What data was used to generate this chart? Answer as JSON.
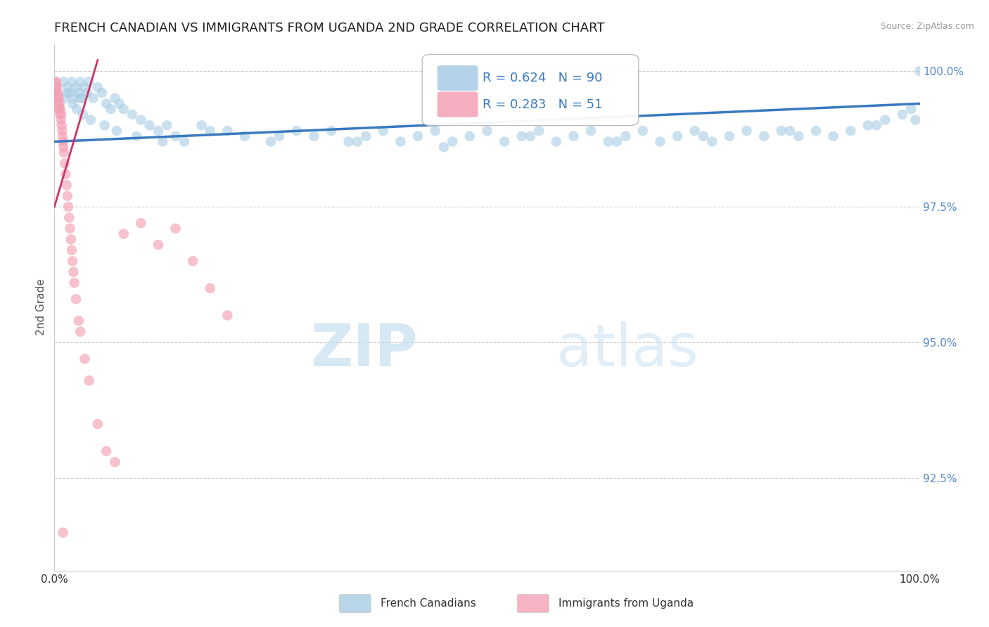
{
  "title": "FRENCH CANADIAN VS IMMIGRANTS FROM UGANDA 2ND GRADE CORRELATION CHART",
  "source_text": "Source: ZipAtlas.com",
  "ylabel": "2nd Grade",
  "y_tick_values": [
    92.5,
    95.0,
    97.5,
    100.0
  ],
  "x_min": 0.0,
  "x_max": 100.0,
  "y_min": 90.8,
  "y_max": 100.5,
  "legend_blue_label": "French Canadians",
  "legend_pink_label": "Immigrants from Uganda",
  "legend_R_blue": "R = 0.624",
  "legend_N_blue": "N = 90",
  "legend_R_pink": "R = 0.283",
  "legend_N_pink": "N = 51",
  "watermark_zip": "ZIP",
  "watermark_atlas": "atlas",
  "blue_color": "#a8cce4",
  "pink_color": "#f4a0b5",
  "blue_line_color": "#3a7abf",
  "pink_line_color": "#cc3366",
  "dot_size": 110,
  "title_fontsize": 13,
  "axis_label_fontsize": 11,
  "tick_label_color_y": "#5588cc",
  "grid_color": "#cccccc",
  "background_color": "#ffffff",
  "blue_scatter_x": [
    1.0,
    1.2,
    1.5,
    1.8,
    2.0,
    2.2,
    2.5,
    2.8,
    3.0,
    3.2,
    3.5,
    3.8,
    4.0,
    4.5,
    5.0,
    5.5,
    6.0,
    6.5,
    7.0,
    7.5,
    8.0,
    9.0,
    10.0,
    11.0,
    12.0,
    13.0,
    14.0,
    15.0,
    17.0,
    20.0,
    22.0,
    25.0,
    28.0,
    30.0,
    32.0,
    34.0,
    36.0,
    38.0,
    40.0,
    42.0,
    44.0,
    46.0,
    48.0,
    50.0,
    52.0,
    54.0,
    56.0,
    58.0,
    60.0,
    62.0,
    64.0,
    66.0,
    68.0,
    70.0,
    72.0,
    74.0,
    76.0,
    78.0,
    80.0,
    82.0,
    84.0,
    86.0,
    88.0,
    90.0,
    92.0,
    94.0,
    96.0,
    98.0,
    99.0,
    100.0,
    2.1,
    2.6,
    3.3,
    4.2,
    5.8,
    7.2,
    9.5,
    12.5,
    18.0,
    26.0,
    35.0,
    45.0,
    55.0,
    65.0,
    75.0,
    85.0,
    95.0,
    99.5,
    1.5,
    3.0
  ],
  "blue_scatter_y": [
    99.8,
    99.5,
    99.7,
    99.6,
    99.8,
    99.5,
    99.7,
    99.6,
    99.8,
    99.5,
    99.7,
    99.6,
    99.8,
    99.5,
    99.7,
    99.6,
    99.4,
    99.3,
    99.5,
    99.4,
    99.3,
    99.2,
    99.1,
    99.0,
    98.9,
    99.0,
    98.8,
    98.7,
    99.0,
    98.9,
    98.8,
    98.7,
    98.9,
    98.8,
    98.9,
    98.7,
    98.8,
    98.9,
    98.7,
    98.8,
    98.9,
    98.7,
    98.8,
    98.9,
    98.7,
    98.8,
    98.9,
    98.7,
    98.8,
    98.9,
    98.7,
    98.8,
    98.9,
    98.7,
    98.8,
    98.9,
    98.7,
    98.8,
    98.9,
    98.8,
    98.9,
    98.8,
    98.9,
    98.8,
    98.9,
    99.0,
    99.1,
    99.2,
    99.3,
    100.0,
    99.4,
    99.3,
    99.2,
    99.1,
    99.0,
    98.9,
    98.8,
    98.7,
    98.9,
    98.8,
    98.7,
    98.6,
    98.8,
    98.7,
    98.8,
    98.9,
    99.0,
    99.1,
    99.6,
    99.5
  ],
  "pink_scatter_x": [
    0.1,
    0.15,
    0.2,
    0.25,
    0.3,
    0.35,
    0.4,
    0.45,
    0.5,
    0.55,
    0.6,
    0.65,
    0.7,
    0.75,
    0.8,
    0.85,
    0.9,
    0.95,
    1.0,
    1.05,
    1.1,
    1.2,
    1.3,
    1.4,
    1.5,
    1.6,
    1.7,
    1.8,
    1.9,
    2.0,
    2.1,
    2.2,
    2.3,
    2.5,
    2.8,
    3.0,
    3.5,
    4.0,
    5.0,
    6.0,
    7.0,
    8.0,
    10.0,
    12.0,
    14.0,
    16.0,
    18.0,
    20.0,
    0.3,
    0.5,
    1.0
  ],
  "pink_scatter_y": [
    99.8,
    99.7,
    99.8,
    99.6,
    99.7,
    99.5,
    99.6,
    99.4,
    99.5,
    99.3,
    99.4,
    99.2,
    99.3,
    99.1,
    99.2,
    99.0,
    98.9,
    98.8,
    98.7,
    98.6,
    98.5,
    98.3,
    98.1,
    97.9,
    97.7,
    97.5,
    97.3,
    97.1,
    96.9,
    96.7,
    96.5,
    96.3,
    96.1,
    95.8,
    95.4,
    95.2,
    94.7,
    94.3,
    93.5,
    93.0,
    92.8,
    97.0,
    97.2,
    96.8,
    97.1,
    96.5,
    96.0,
    95.5,
    99.5,
    99.3,
    91.5
  ],
  "blue_trendline_x0": 0.0,
  "blue_trendline_x1": 100.0,
  "blue_trendline_y0": 98.7,
  "blue_trendline_y1": 99.4,
  "pink_trendline_x0": 0.0,
  "pink_trendline_x1": 5.0,
  "pink_trendline_y0": 97.5,
  "pink_trendline_y1": 100.2
}
